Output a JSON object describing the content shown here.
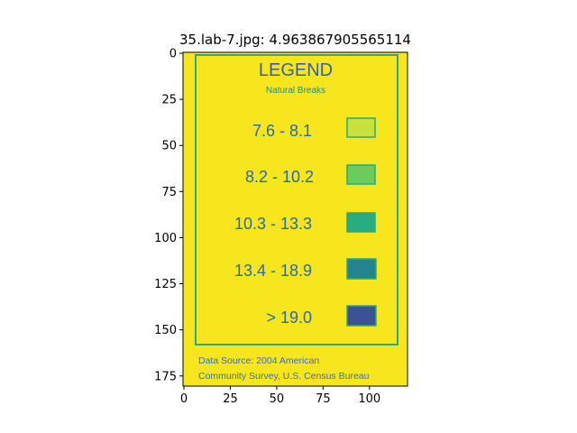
{
  "chart_data": {
    "type": "image",
    "title": "35.lab-7.jpg: 4.963867905565114",
    "xlim": [
      -0.5,
      120.5
    ],
    "ylim": [
      180.5,
      -0.5
    ],
    "xticks": [
      0,
      25,
      50,
      75,
      100
    ],
    "yticks": [
      0,
      25,
      50,
      75,
      100,
      125,
      150,
      175
    ],
    "image_content": {
      "background_color": "#f7e51e",
      "frame_color": "#2fa87a",
      "heading": "LEGEND",
      "subheading": "Natural Breaks",
      "classes": [
        {
          "label": "7.6 - 8.1",
          "color": "#c9e13c"
        },
        {
          "label": "8.2 - 10.2",
          "color": "#6ccb5a"
        },
        {
          "label": "10.3 - 13.3",
          "color": "#27ad81"
        },
        {
          "label": "13.4 - 18.9",
          "color": "#23838e"
        },
        {
          "label": "> 19.0",
          "color": "#3b5394"
        }
      ],
      "source_line_1": "Data Source: 2004 American",
      "source_line_2": "Community Survey, U.S. Census Bureau"
    }
  }
}
